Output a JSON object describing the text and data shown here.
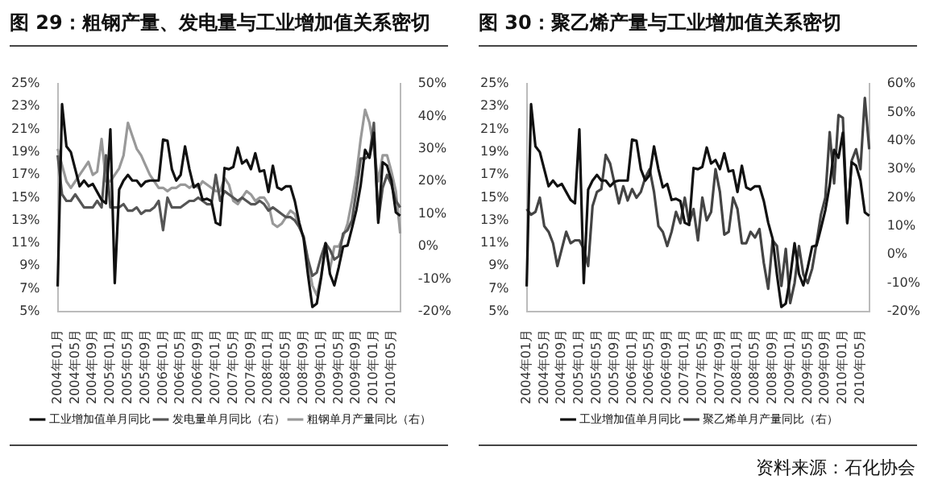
{
  "chart_data": [
    {
      "type": "line",
      "title": "图 29：粗钢产量、发电量与工业增加值关系密切",
      "categories": [
        "2004年01月",
        null,
        null,
        null,
        "2004年05月",
        null,
        null,
        null,
        "2004年09月",
        null,
        null,
        null,
        "2005年01月",
        null,
        null,
        null,
        "2005年05月",
        null,
        null,
        null,
        "2005年09月",
        null,
        null,
        null,
        "2006年01月",
        null,
        null,
        null,
        "2006年05月",
        null,
        null,
        null,
        "2006年09月",
        null,
        null,
        null,
        "2007年01月",
        null,
        null,
        null,
        "2007年05月",
        null,
        null,
        null,
        "2007年09月",
        null,
        null,
        null,
        "2008年01月",
        null,
        null,
        null,
        "2008年05月",
        null,
        null,
        null,
        "2008年09月",
        null,
        null,
        null,
        "2009年01月",
        null,
        null,
        null,
        "2009年05月",
        null,
        null,
        null,
        "2009年09月",
        null,
        null,
        null,
        "2010年01月",
        null,
        null,
        null,
        "2010年05月",
        null,
        null
      ],
      "series": [
        {
          "name": "工业增加值单月同比",
          "color": "#111111",
          "values": [
            7.2,
            23.2,
            19.5,
            19,
            17.5,
            16,
            16.5,
            16,
            16.2,
            15.5,
            14.8,
            14.5,
            21,
            7.5,
            15.7,
            16.5,
            17,
            16.5,
            16.5,
            16,
            16.4,
            16.5,
            16.5,
            16.5,
            20.1,
            20,
            17.5,
            16.5,
            17,
            19.5,
            17.5,
            15.9,
            16.2,
            14.8,
            14.9,
            14.7,
            12.8,
            12.6,
            17.6,
            17.5,
            17.7,
            19.4,
            18,
            18.3,
            17.5,
            18.9,
            17.3,
            17.4,
            15.5,
            17.8,
            15.9,
            15.7,
            16,
            16,
            14.7,
            12.8,
            11.4,
            8.2,
            5.4,
            5.7,
            8,
            11,
            8.3,
            7.3,
            8.9,
            10.7,
            10.8,
            12.3,
            13.9,
            16.1,
            19.2,
            18.5,
            20.7,
            12.8,
            18.1,
            17.8,
            16.5,
            13.7,
            13.4
          ]
        },
        {
          "name": "发电量单月同比（右）",
          "color": "#555555",
          "axis": "y2",
          "values": [
            28,
            16,
            14,
            14,
            16,
            14,
            12,
            12,
            12,
            14,
            12,
            28,
            12,
            12,
            12,
            13,
            11,
            11,
            12,
            10,
            11,
            11,
            12,
            14,
            5,
            15,
            12,
            12,
            12,
            13,
            14,
            14,
            15,
            14,
            13,
            13,
            22,
            14,
            17,
            16,
            15,
            14,
            15,
            14,
            13,
            13,
            14,
            13,
            11,
            12,
            11,
            10,
            9,
            9,
            8,
            6,
            3,
            -4,
            -9,
            -8,
            -3,
            1,
            -1,
            -4,
            -3,
            4,
            5,
            8,
            17,
            27,
            27,
            28,
            38,
            8,
            18,
            22,
            19,
            14,
            12
          ]
        },
        {
          "name": "粗钢单月产量同比（右）",
          "color": "#999999",
          "axis": "y2",
          "values": [
            30,
            25,
            20,
            18,
            20,
            22,
            24,
            26,
            22,
            23,
            33,
            20,
            20,
            22,
            24,
            28,
            38,
            34,
            30,
            28,
            25,
            22,
            20,
            18,
            18,
            17,
            18,
            18,
            19,
            19,
            18,
            19,
            18,
            20,
            19,
            18,
            17,
            17,
            21,
            19,
            14,
            13,
            15,
            17,
            16,
            14,
            15,
            15,
            13,
            7,
            6,
            7,
            9,
            11,
            10,
            6,
            3,
            -5,
            -12,
            -15,
            -9,
            -1,
            -7,
            0,
            0,
            3,
            7,
            14,
            22,
            33,
            42,
            38,
            30,
            20,
            28,
            28,
            23,
            17,
            4
          ]
        }
      ],
      "ylim": [
        5,
        25
      ],
      "yticks": [
        {
          "value": 5,
          "label": "5%"
        },
        {
          "value": 7,
          "label": "7%"
        },
        {
          "value": 9,
          "label": "9%"
        },
        {
          "value": 11,
          "label": "11%"
        },
        {
          "value": 13,
          "label": "13%"
        },
        {
          "value": 15,
          "label": "15%"
        },
        {
          "value": 17,
          "label": "17%"
        },
        {
          "value": 19,
          "label": "19%"
        },
        {
          "value": 21,
          "label": "21%"
        },
        {
          "value": 23,
          "label": "23%"
        },
        {
          "value": 25,
          "label": "25%"
        }
      ],
      "y2lim": [
        -20,
        50
      ],
      "y2ticks": [
        {
          "value": -20,
          "label": "-20%"
        },
        {
          "value": -10,
          "label": "-10%"
        },
        {
          "value": 0,
          "label": "0%"
        },
        {
          "value": 10,
          "label": "10%"
        },
        {
          "value": 20,
          "label": "20%"
        },
        {
          "value": 30,
          "label": "30%"
        },
        {
          "value": 40,
          "label": "40%"
        },
        {
          "value": 50,
          "label": "50%"
        }
      ],
      "legend": "bottom"
    },
    {
      "type": "line",
      "title": "图 30：聚乙烯产量与工业增加值关系密切",
      "categories": [
        "2004年01月",
        null,
        null,
        null,
        "2004年05月",
        null,
        null,
        null,
        "2004年09月",
        null,
        null,
        null,
        "2005年01月",
        null,
        null,
        null,
        "2005年05月",
        null,
        null,
        null,
        "2005年09月",
        null,
        null,
        null,
        "2006年01月",
        null,
        null,
        null,
        "2006年05月",
        null,
        null,
        null,
        "2006年09月",
        null,
        null,
        null,
        "2007年01月",
        null,
        null,
        null,
        "2007年05月",
        null,
        null,
        null,
        "2007年09月",
        null,
        null,
        null,
        "2008年01月",
        null,
        null,
        null,
        "2008年05月",
        null,
        null,
        null,
        "2008年09月",
        null,
        null,
        null,
        "2009年01月",
        null,
        null,
        null,
        "2009年05月",
        null,
        null,
        null,
        "2009年09月",
        null,
        null,
        null,
        "2010年01月",
        null,
        null,
        null,
        "2010年05月",
        null,
        null
      ],
      "series": [
        {
          "name": "工业增加值单月同比",
          "color": "#111111",
          "values": [
            7.2,
            23.2,
            19.5,
            19,
            17.5,
            16,
            16.5,
            16,
            16.2,
            15.5,
            14.8,
            14.5,
            21,
            7.5,
            15.7,
            16.5,
            17,
            16.5,
            16.5,
            16,
            16.4,
            16.5,
            16.5,
            16.5,
            20.1,
            20,
            17.5,
            16.5,
            17,
            19.5,
            17.5,
            15.9,
            16.2,
            14.8,
            14.9,
            14.7,
            12.8,
            12.6,
            17.6,
            17.5,
            17.7,
            19.4,
            18,
            18.3,
            17.5,
            18.9,
            17.3,
            17.4,
            15.5,
            17.8,
            15.9,
            15.7,
            16,
            16,
            14.7,
            12.8,
            11.4,
            8.2,
            5.4,
            5.7,
            8,
            11,
            8.3,
            7.3,
            8.9,
            10.7,
            10.8,
            12.3,
            13.9,
            16.1,
            19.2,
            18.5,
            20.7,
            12.8,
            18.1,
            17.8,
            16.5,
            13.7,
            13.4
          ]
        },
        {
          "name": "聚乙烯单月产量同比（右）",
          "color": "#444444",
          "axis": "y2",
          "values": [
            16,
            14,
            15,
            20,
            10,
            8,
            4,
            -4,
            2,
            8,
            4,
            5,
            5,
            2,
            -4,
            17,
            22,
            23,
            35,
            32,
            25,
            18,
            24,
            19,
            23,
            20,
            22,
            27,
            30,
            22,
            10,
            8,
            3,
            8,
            15,
            11,
            20,
            11,
            16,
            5,
            20,
            12,
            15,
            30,
            22,
            7,
            8,
            20,
            16,
            4,
            4,
            8,
            6,
            9,
            -3,
            -12,
            5,
            3,
            -11,
            2,
            -17,
            -10,
            3,
            -7,
            -10,
            -5,
            4,
            14,
            20,
            43,
            25,
            49,
            48,
            11,
            33,
            37,
            30,
            55,
            37
          ]
        }
      ],
      "ylim": [
        5,
        25
      ],
      "yticks": [
        {
          "value": 5,
          "label": "5%"
        },
        {
          "value": 7,
          "label": "7%"
        },
        {
          "value": 9,
          "label": "9%"
        },
        {
          "value": 11,
          "label": "11%"
        },
        {
          "value": 13,
          "label": "13%"
        },
        {
          "value": 15,
          "label": "15%"
        },
        {
          "value": 17,
          "label": "17%"
        },
        {
          "value": 19,
          "label": "19%"
        },
        {
          "value": 21,
          "label": "21%"
        },
        {
          "value": 23,
          "label": "23%"
        },
        {
          "value": 25,
          "label": "25%"
        }
      ],
      "y2lim": [
        -20,
        60
      ],
      "y2ticks": [
        {
          "value": -20,
          "label": "-20%"
        },
        {
          "value": -10,
          "label": "-10%"
        },
        {
          "value": 0,
          "label": "0%"
        },
        {
          "value": 10,
          "label": "10%"
        },
        {
          "value": 20,
          "label": "20%"
        },
        {
          "value": 30,
          "label": "30%"
        },
        {
          "value": 40,
          "label": "40%"
        },
        {
          "value": 50,
          "label": "50%"
        },
        {
          "value": 60,
          "label": "60%"
        }
      ],
      "legend": "bottom",
      "annotations": [
        "资料来源：石化协会"
      ]
    }
  ]
}
